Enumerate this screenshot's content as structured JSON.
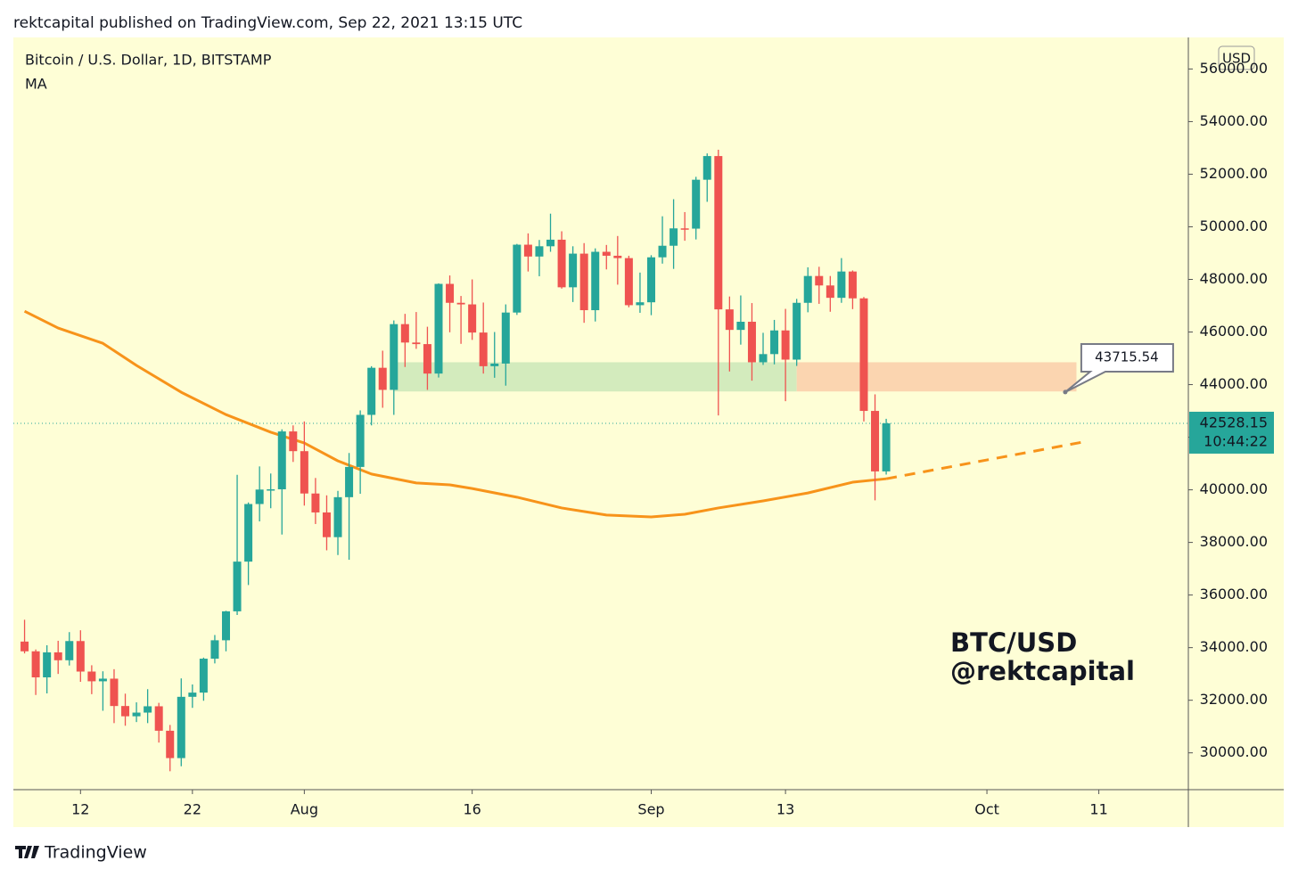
{
  "header": "rektcapital published on TradingView.com, Sep 22, 2021 13:15 UTC",
  "footer": "TradingView",
  "chart_data": {
    "type": "candlestick",
    "title": "Bitcoin / U.S. Dollar, 1D, BITSTAMP",
    "price_unit": "USD",
    "countdown": "10:44:22",
    "annotations": [
      "BTC/USD",
      "@rektcapital"
    ],
    "up_color": "#26a69a",
    "down_color": "#ef5350",
    "x": [
      "2021-07-07",
      "2021-07-08",
      "2021-07-09",
      "2021-07-10",
      "2021-07-11",
      "2021-07-12",
      "2021-07-13",
      "2021-07-14",
      "2021-07-15",
      "2021-07-16",
      "2021-07-17",
      "2021-07-18",
      "2021-07-19",
      "2021-07-20",
      "2021-07-21",
      "2021-07-22",
      "2021-07-23",
      "2021-07-24",
      "2021-07-25",
      "2021-07-26",
      "2021-07-27",
      "2021-07-28",
      "2021-07-29",
      "2021-07-30",
      "2021-07-31",
      "2021-08-01",
      "2021-08-02",
      "2021-08-03",
      "2021-08-04",
      "2021-08-05",
      "2021-08-06",
      "2021-08-07",
      "2021-08-08",
      "2021-08-09",
      "2021-08-10",
      "2021-08-11",
      "2021-08-12",
      "2021-08-13",
      "2021-08-14",
      "2021-08-15",
      "2021-08-16",
      "2021-08-17",
      "2021-08-18",
      "2021-08-19",
      "2021-08-20",
      "2021-08-21",
      "2021-08-22",
      "2021-08-23",
      "2021-08-24",
      "2021-08-25",
      "2021-08-26",
      "2021-08-27",
      "2021-08-28",
      "2021-08-29",
      "2021-08-30",
      "2021-08-31",
      "2021-09-01",
      "2021-09-02",
      "2021-09-03",
      "2021-09-04",
      "2021-09-05",
      "2021-09-06",
      "2021-09-07",
      "2021-09-08",
      "2021-09-09",
      "2021-09-10",
      "2021-09-11",
      "2021-09-12",
      "2021-09-13",
      "2021-09-14",
      "2021-09-15",
      "2021-09-16",
      "2021-09-17",
      "2021-09-18",
      "2021-09-19",
      "2021-09-20",
      "2021-09-21",
      "2021-09-22"
    ],
    "open": [
      34230,
      33860,
      32870,
      33820,
      33520,
      34250,
      33090,
      32720,
      32820,
      31780,
      31390,
      31530,
      31770,
      30840,
      29800,
      32130,
      32290,
      33580,
      34280,
      35380,
      37270,
      39460,
      40010,
      40020,
      42220,
      41470,
      39860,
      39140,
      38200,
      39720,
      40870,
      42850,
      44640,
      43800,
      46300,
      45600,
      45540,
      44420,
      47830,
      47110,
      47050,
      45980,
      44700,
      44800,
      46740,
      49320,
      48870,
      49260,
      49510,
      47700,
      48980,
      46830,
      49050,
      48900,
      48810,
      47020,
      47130,
      48840,
      49280,
      49940,
      49930,
      51790,
      52690,
      46860,
      46080,
      46390,
      44850,
      45160,
      46060,
      44950,
      47110,
      48130,
      47770,
      47300,
      48300,
      47280,
      43000,
      40700
    ],
    "high": [
      35060,
      33930,
      34090,
      34260,
      34590,
      34660,
      33330,
      33100,
      33180,
      32250,
      31920,
      32420,
      31900,
      31060,
      32830,
      32600,
      33620,
      34480,
      35400,
      40570,
      39520,
      40890,
      40620,
      42300,
      42450,
      42600,
      40450,
      39790,
      39960,
      41400,
      43020,
      44700,
      45290,
      46440,
      46690,
      46760,
      46200,
      47850,
      48150,
      47370,
      48000,
      47120,
      46000,
      47050,
      49350,
      49750,
      49500,
      50500,
      49830,
      49260,
      49380,
      49180,
      49310,
      49650,
      48900,
      48260,
      48920,
      50400,
      51050,
      50560,
      51900,
      52790,
      52930,
      47350,
      47390,
      47100,
      45970,
      46460,
      46880,
      47260,
      48460,
      48480,
      48130,
      48810,
      48340,
      47330,
      43630,
      42700
    ],
    "low": [
      33780,
      32200,
      32260,
      33000,
      33320,
      32700,
      32230,
      31600,
      31130,
      31030,
      31170,
      31130,
      30390,
      29300,
      29490,
      31710,
      31980,
      33400,
      33860,
      35240,
      36380,
      38800,
      39300,
      38300,
      41060,
      39400,
      38700,
      37700,
      37520,
      37340,
      39850,
      42450,
      43120,
      42850,
      44670,
      45360,
      43800,
      44270,
      45990,
      45550,
      45700,
      44420,
      44260,
      43960,
      46650,
      48300,
      48120,
      49050,
      47650,
      47140,
      46350,
      46400,
      48380,
      47800,
      46940,
      46730,
      46640,
      48600,
      48400,
      49470,
      49520,
      50950,
      42830,
      44500,
      45520,
      44150,
      44750,
      44770,
      43370,
      44710,
      46750,
      47070,
      46770,
      47110,
      46870,
      42600,
      39600,
      40580
    ],
    "close": [
      33860,
      32870,
      33820,
      33520,
      34250,
      33090,
      32720,
      32820,
      31780,
      31390,
      31530,
      31770,
      30840,
      29800,
      32130,
      32290,
      33580,
      34280,
      35380,
      37270,
      39460,
      40010,
      40020,
      42220,
      41470,
      39860,
      39140,
      38200,
      39720,
      40870,
      42850,
      44640,
      43800,
      46300,
      45600,
      45540,
      44420,
      47830,
      47110,
      47050,
      45980,
      44700,
      44800,
      46740,
      49320,
      48870,
      49260,
      49510,
      47700,
      48980,
      46830,
      49050,
      48900,
      48810,
      47020,
      47130,
      48840,
      49280,
      49940,
      49930,
      51790,
      52690,
      46860,
      46080,
      46390,
      44850,
      45160,
      46060,
      44950,
      47110,
      48130,
      47770,
      47300,
      48300,
      47280,
      43000,
      40700,
      42528.15
    ],
    "ma": {
      "name": "MA",
      "color": "#f7931a",
      "x": [
        "2021-07-07",
        "2021-07-10",
        "2021-07-14",
        "2021-07-17",
        "2021-07-21",
        "2021-07-25",
        "2021-07-29",
        "2021-08-01",
        "2021-08-04",
        "2021-08-07",
        "2021-08-11",
        "2021-08-14",
        "2021-08-16",
        "2021-08-20",
        "2021-08-24",
        "2021-08-28",
        "2021-09-01",
        "2021-09-04",
        "2021-09-07",
        "2021-09-11",
        "2021-09-15",
        "2021-09-19",
        "2021-09-22"
      ],
      "values": [
        46790,
        46150,
        45570,
        44730,
        43710,
        42860,
        42190,
        41780,
        41100,
        40600,
        40260,
        40190,
        40050,
        39720,
        39310,
        39040,
        38970,
        39070,
        39310,
        39580,
        39880,
        40290,
        40420
      ]
    },
    "projection": {
      "x": [
        "2021-09-22",
        "2021-10-10"
      ],
      "values": [
        40420,
        41850
      ]
    },
    "zones": [
      {
        "x": [
          "2021-08-09",
          "2021-09-14"
        ],
        "y": [
          43740,
          44850
        ],
        "color": "#d3ebbd"
      },
      {
        "x": [
          "2021-09-14",
          "2021-10-09"
        ],
        "y": [
          43740,
          44850
        ],
        "color": "#fbd5b0"
      }
    ],
    "callout": {
      "x": "2021-10-08",
      "value": 43715.54
    },
    "xlim": [
      "2021-07-06",
      "2021-10-19"
    ],
    "xticks": [
      {
        "value": "2021-07-12",
        "label": "12"
      },
      {
        "value": "2021-07-22",
        "label": "22"
      },
      {
        "value": "2021-08-01",
        "label": "Aug"
      },
      {
        "value": "2021-08-16",
        "label": "16"
      },
      {
        "value": "2021-09-01",
        "label": "Sep"
      },
      {
        "value": "2021-09-13",
        "label": "13"
      },
      {
        "value": "2021-10-01",
        "label": "Oct"
      },
      {
        "value": "2021-10-11",
        "label": "11"
      }
    ],
    "ylim": [
      28600,
      57200
    ],
    "yticks": [
      {
        "value": 30000,
        "label": "30000.00"
      },
      {
        "value": 32000,
        "label": "32000.00"
      },
      {
        "value": 34000,
        "label": "34000.00"
      },
      {
        "value": 36000,
        "label": "36000.00"
      },
      {
        "value": 38000,
        "label": "38000.00"
      },
      {
        "value": 40000,
        "label": "40000.00"
      },
      {
        "value": 42000,
        "label": "42000.00"
      },
      {
        "value": 44000,
        "label": "44000.00"
      },
      {
        "value": 46000,
        "label": "46000.00"
      },
      {
        "value": 48000,
        "label": "48000.00"
      },
      {
        "value": 50000,
        "label": "50000.00"
      },
      {
        "value": 52000,
        "label": "52000.00"
      },
      {
        "value": 54000,
        "label": "54000.00"
      },
      {
        "value": 56000,
        "label": "56000.00"
      }
    ]
  }
}
